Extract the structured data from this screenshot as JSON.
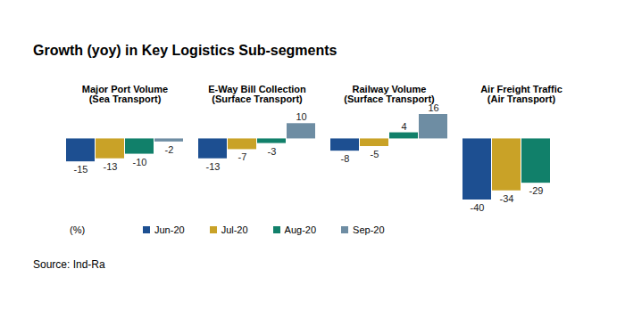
{
  "chart_data": {
    "type": "bar",
    "title": "Growth (yoy) in Key Logistics Sub-segments",
    "ylabel": "(%)",
    "source": "Source: Ind-Ra",
    "categories": [
      "Major Port Volume\n(Sea Transport)",
      "E-Way Bill Collection\n(Surface Transport)",
      "Railway Volume\n(Surface Transport)",
      "Air Freight Traffic\n(Air Transport)"
    ],
    "series": [
      {
        "name": "Jun-20",
        "color": "#1d4f91",
        "values": [
          -15,
          -13,
          -8,
          -40
        ]
      },
      {
        "name": "Jul-20",
        "color": "#c9a227",
        "values": [
          -13,
          -7,
          -5,
          -34
        ]
      },
      {
        "name": "Aug-20",
        "color": "#11806a",
        "values": [
          -10,
          -3,
          4,
          -29
        ]
      },
      {
        "name": "Sep-20",
        "color": "#6e8da3",
        "values": [
          -2,
          10,
          16,
          null
        ]
      }
    ],
    "ylim": [
      -40,
      16
    ],
    "yticks": [
      -40,
      0,
      16
    ],
    "grid": false,
    "tick_labels": false,
    "data_labels": true,
    "legend": "bottom"
  }
}
